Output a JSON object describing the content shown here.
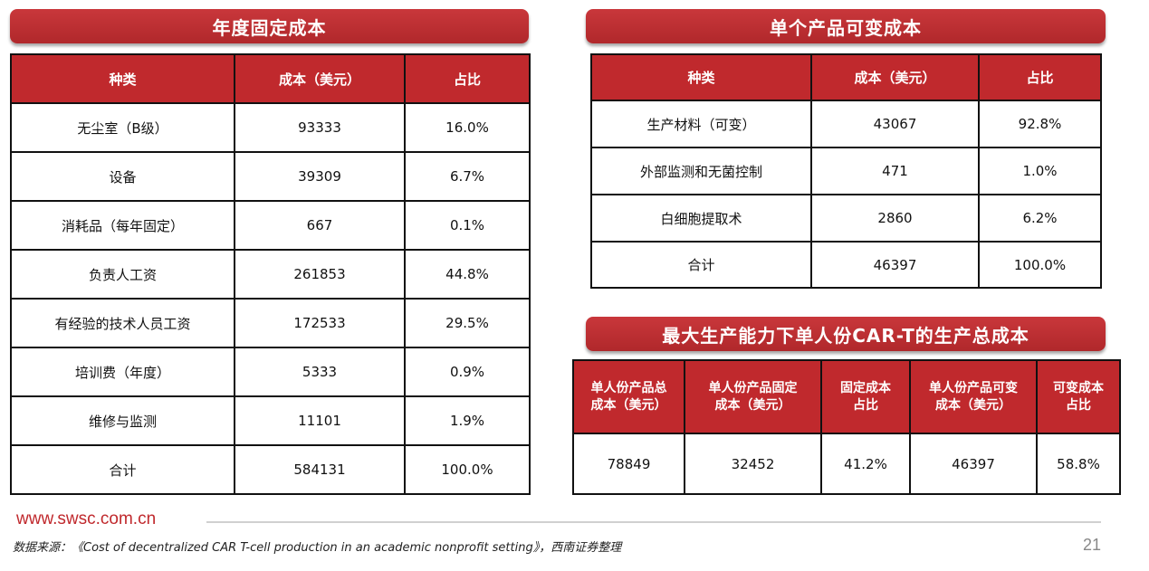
{
  "fixed": {
    "title": "年度固定成本",
    "headers": [
      "种类",
      "成本（美元）",
      "占比"
    ],
    "rows": [
      [
        "无尘室（B级）",
        "93333",
        "16.0%"
      ],
      [
        "设备",
        "39309",
        "6.7%"
      ],
      [
        "消耗品（每年固定）",
        "667",
        "0.1%"
      ],
      [
        "负责人工资",
        "261853",
        "44.8%"
      ],
      [
        "有经验的技术人员工资",
        "172533",
        "29.5%"
      ],
      [
        "培训费（年度）",
        "5333",
        "0.9%"
      ],
      [
        "维修与监测",
        "11101",
        "1.9%"
      ],
      [
        "合计",
        "584131",
        "100.0%"
      ]
    ]
  },
  "variable": {
    "title": "单个产品可变成本",
    "headers": [
      "种类",
      "成本（美元）",
      "占比"
    ],
    "rows": [
      [
        "生产材料（可变）",
        "43067",
        "92.8%"
      ],
      [
        "外部监测和无菌控制",
        "471",
        "1.0%"
      ],
      [
        "白细胞提取术",
        "2860",
        "6.2%"
      ],
      [
        "合计",
        "46397",
        "100.0%"
      ]
    ]
  },
  "total": {
    "title": "最大生产能力下单人份CAR-T的生产总成本",
    "headers": [
      [
        "单人份产品总",
        "成本（美元）"
      ],
      [
        "单人份产品固定",
        "成本（美元）"
      ],
      [
        "固定成本",
        "占比"
      ],
      [
        "单人份产品可变",
        "成本（美元）"
      ],
      [
        "可变成本",
        "占比"
      ]
    ],
    "row": [
      "78849",
      "32452",
      "41.2%",
      "46397",
      "58.8%"
    ]
  },
  "footer": {
    "url": "www.swsc.com.cn",
    "source": "数据来源：《Cost of decentralized CAR T-cell production in an academic nonprofit setting》，西南证券整理",
    "page": "21"
  }
}
